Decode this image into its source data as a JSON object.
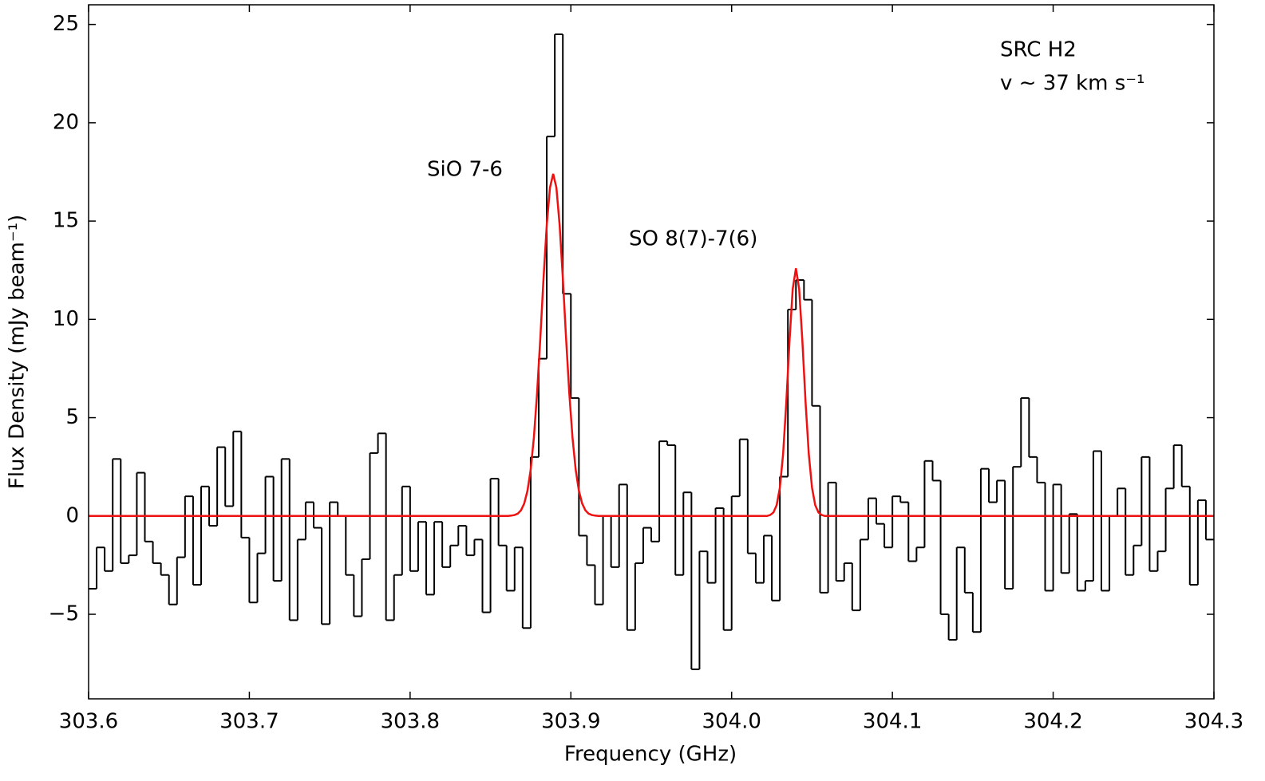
{
  "chart_data": {
    "type": "step-line",
    "xlabel": "Frequency (GHz)",
    "ylabel": "Flux Density (mJy beam⁻¹)",
    "annotations": [
      "SiO 7-6",
      "SO 8(7)-7(6)",
      "SRC H2",
      "v ∼ 37 km s⁻¹"
    ],
    "xlim": [
      303.6,
      304.3
    ],
    "ylim": [
      -9.3,
      26
    ],
    "xticks": [
      303.6,
      303.7,
      303.8,
      303.9,
      {
        "value": 304.0,
        "label": "304.0"
      },
      304.1,
      304.2,
      304.3
    ],
    "yticks": [
      {
        "value": -5,
        "label": "−5"
      },
      0,
      5,
      10,
      15,
      20,
      25
    ],
    "series": [
      {
        "color": "#000000",
        "style": "steps",
        "x": [
          303.6025,
          303.6075,
          303.6125,
          303.6175,
          303.6225,
          303.6275,
          303.6325,
          303.6375,
          303.6425,
          303.6475,
          303.6525,
          303.6575,
          303.6625,
          303.6675,
          303.6725,
          303.6775,
          303.6825,
          303.6875,
          303.6925,
          303.6975,
          303.7025,
          303.7075,
          303.7125,
          303.7175,
          303.7225,
          303.7275,
          303.7325,
          303.7375,
          303.7425,
          303.7475,
          303.7525,
          303.7575,
          303.7625,
          303.7675,
          303.7725,
          303.7775,
          303.7825,
          303.7875,
          303.7925,
          303.7975,
          303.8025,
          303.8075,
          303.8125,
          303.8175,
          303.8225,
          303.8275,
          303.8325,
          303.8375,
          303.8425,
          303.8475,
          303.8525,
          303.8575,
          303.8625,
          303.8675,
          303.8725,
          303.8775,
          303.8825,
          303.8875,
          303.8925,
          303.8975,
          303.9025,
          303.9075,
          303.9125,
          303.9175,
          303.9225,
          303.9275,
          303.9325,
          303.9375,
          303.9425,
          303.9475,
          303.9525,
          303.9575,
          303.9625,
          303.9675,
          303.9725,
          303.9775,
          303.9825,
          303.9875,
          303.9925,
          303.9975,
          304.0025,
          304.0075,
          304.0125,
          304.0175,
          304.0225,
          304.0275,
          304.0325,
          304.0375,
          304.0425,
          304.0475,
          304.0525,
          304.0575,
          304.0625,
          304.0675,
          304.0725,
          304.0775,
          304.0825,
          304.0875,
          304.0925,
          304.0975,
          304.1025,
          304.1075,
          304.1125,
          304.1175,
          304.1225,
          304.1275,
          304.1325,
          304.1375,
          304.1425,
          304.1475,
          304.1525,
          304.1575,
          304.1625,
          304.1675,
          304.1725,
          304.1775,
          304.1825,
          304.1875,
          304.1925,
          304.1975,
          304.2025,
          304.2075,
          304.2125,
          304.2175,
          304.2225,
          304.2275,
          304.2325,
          304.2375,
          304.2425,
          304.2475,
          304.2525,
          304.2575,
          304.2625,
          304.2675,
          304.2725,
          304.2775,
          304.2825,
          304.2875,
          304.2925,
          304.2975
        ],
        "values": [
          -3.7,
          -1.6,
          -2.8,
          2.9,
          -2.4,
          -2.0,
          2.2,
          -1.3,
          -2.4,
          -3.0,
          -4.5,
          -2.1,
          1.0,
          -3.5,
          1.5,
          -0.5,
          3.5,
          0.5,
          4.3,
          -1.1,
          -4.4,
          -1.9,
          2.0,
          -3.3,
          2.9,
          -5.3,
          -1.2,
          0.7,
          -0.6,
          -5.5,
          0.7,
          0.0,
          -3.0,
          -5.1,
          -2.2,
          3.2,
          4.2,
          -5.3,
          -3.0,
          1.5,
          -2.8,
          -0.3,
          -4.0,
          -0.3,
          -2.6,
          -1.5,
          -0.5,
          -2.0,
          -1.2,
          -4.9,
          1.9,
          -1.5,
          -3.8,
          -1.6,
          -5.7,
          3.0,
          8.0,
          19.3,
          24.5,
          11.3,
          6.0,
          -1.0,
          -2.5,
          -4.5,
          0.0,
          -2.6,
          1.6,
          -5.8,
          -2.4,
          -0.6,
          -1.3,
          3.8,
          3.6,
          -3.0,
          1.2,
          -7.8,
          -1.8,
          -3.4,
          0.4,
          -5.8,
          1.0,
          3.9,
          -1.9,
          -3.4,
          -1.0,
          -4.3,
          2.0,
          10.5,
          12.0,
          11.0,
          5.6,
          -3.9,
          1.7,
          -3.3,
          -2.4,
          -4.8,
          -1.2,
          0.9,
          -0.4,
          -1.6,
          1.0,
          0.7,
          -2.3,
          -1.6,
          2.8,
          1.8,
          -5.0,
          -6.3,
          -1.6,
          -3.9,
          -5.9,
          2.4,
          0.7,
          1.8,
          -3.7,
          2.5,
          6.0,
          3.0,
          1.7,
          -3.8,
          1.6,
          -2.9,
          0.1,
          -3.8,
          -3.3,
          3.3,
          -3.8,
          0.0,
          1.4,
          -3.0,
          -1.5,
          3.0,
          -2.8,
          -1.8,
          1.4,
          3.6,
          1.5,
          -3.5,
          0.8,
          -1.2
        ]
      },
      {
        "color": "#ee1111",
        "style": "line",
        "x": [
          303.6,
          303.861,
          303.863,
          303.865,
          303.867,
          303.869,
          303.871,
          303.873,
          303.875,
          303.877,
          303.879,
          303.881,
          303.883,
          303.885,
          303.887,
          303.889,
          303.891,
          303.893,
          303.895,
          303.897,
          303.899,
          303.901,
          303.903,
          303.905,
          303.907,
          303.909,
          303.911,
          303.913,
          303.915,
          303.917,
          304.022,
          304.024,
          304.026,
          304.028,
          304.03,
          304.032,
          304.034,
          304.036,
          304.038,
          304.04,
          304.042,
          304.044,
          304.046,
          304.048,
          304.05,
          304.052,
          304.054,
          304.056,
          304.058,
          304.3
        ],
        "values": [
          0,
          0,
          0.02,
          0.05,
          0.12,
          0.29,
          0.64,
          1.28,
          2.35,
          4.0,
          6.27,
          9.05,
          12.1,
          14.8,
          16.7,
          17.4,
          16.7,
          14.8,
          12.1,
          9.05,
          6.27,
          4.0,
          2.35,
          1.28,
          0.64,
          0.29,
          0.12,
          0.05,
          0.02,
          0,
          0,
          0.05,
          0.18,
          0.55,
          1.44,
          3.14,
          5.77,
          8.9,
          11.55,
          12.6,
          11.55,
          8.9,
          5.77,
          3.14,
          1.44,
          0.55,
          0.18,
          0.05,
          0,
          0
        ]
      }
    ]
  }
}
